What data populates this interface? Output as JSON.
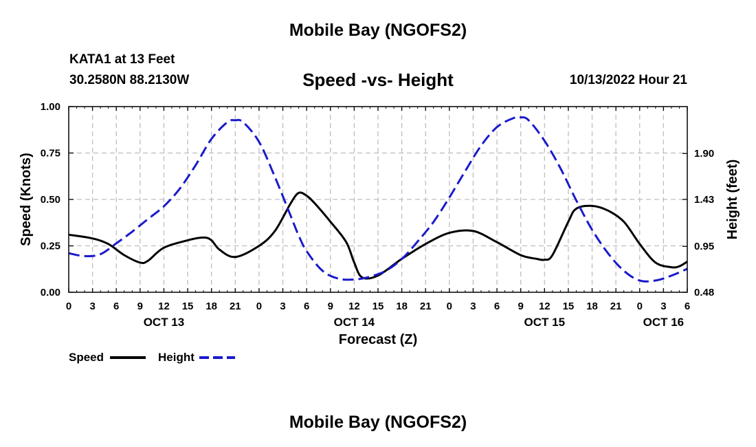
{
  "header": {
    "title": "Mobile Bay (NGOFS2)",
    "station": "KATA1 at 13 Feet",
    "coordinates": "30.2580N  88.2130W",
    "datetime": "10/13/2022 Hour 21"
  },
  "footer": {
    "title": "Mobile Bay (NGOFS2)"
  },
  "chart_data": {
    "type": "line",
    "title": "Speed -vs- Height",
    "xlabel": "Forecast (Z)",
    "ylabel": "Speed (Knots)",
    "y2label": "Height (feet)",
    "x_unit": "hours since 2022-10-13 00Z",
    "xlim": [
      0,
      78
    ],
    "ylim": [
      0,
      1
    ],
    "y2lim": [
      0.48,
      2.38
    ],
    "grid": true,
    "x_ticks": [
      {
        "x": 0,
        "label": "0"
      },
      {
        "x": 3,
        "label": "3"
      },
      {
        "x": 6,
        "label": "6"
      },
      {
        "x": 9,
        "label": "9"
      },
      {
        "x": 12,
        "label": "12"
      },
      {
        "x": 15,
        "label": "15"
      },
      {
        "x": 18,
        "label": "18"
      },
      {
        "x": 21,
        "label": "21"
      },
      {
        "x": 24,
        "label": "0"
      },
      {
        "x": 27,
        "label": "3"
      },
      {
        "x": 30,
        "label": "6"
      },
      {
        "x": 33,
        "label": "9"
      },
      {
        "x": 36,
        "label": "12"
      },
      {
        "x": 39,
        "label": "15"
      },
      {
        "x": 42,
        "label": "18"
      },
      {
        "x": 45,
        "label": "21"
      },
      {
        "x": 48,
        "label": "0"
      },
      {
        "x": 51,
        "label": "3"
      },
      {
        "x": 54,
        "label": "6"
      },
      {
        "x": 57,
        "label": "9"
      },
      {
        "x": 60,
        "label": "12"
      },
      {
        "x": 63,
        "label": "15"
      },
      {
        "x": 66,
        "label": "18"
      },
      {
        "x": 69,
        "label": "21"
      },
      {
        "x": 72,
        "label": "0"
      },
      {
        "x": 75,
        "label": "3"
      },
      {
        "x": 78,
        "label": "6"
      }
    ],
    "date_labels": [
      {
        "x": 12,
        "label": "OCT 13"
      },
      {
        "x": 36,
        "label": "OCT 14"
      },
      {
        "x": 60,
        "label": "OCT 15"
      },
      {
        "x": 75,
        "label": "OCT 16"
      }
    ],
    "y_ticks": [
      {
        "v": 0,
        "label": "0.00"
      },
      {
        "v": 0.25,
        "label": "0.25"
      },
      {
        "v": 0.5,
        "label": "0.50"
      },
      {
        "v": 0.75,
        "label": "0.75"
      },
      {
        "v": 1,
        "label": "1.00"
      }
    ],
    "y2_ticks": [
      {
        "v": 0.48,
        "label": "0.48"
      },
      {
        "v": 0.95,
        "label": "0.95"
      },
      {
        "v": 1.43,
        "label": "1.43"
      },
      {
        "v": 1.9,
        "label": "1.90"
      }
    ],
    "legend": [
      "Speed",
      "Height"
    ],
    "series": [
      {
        "name": "Speed",
        "axis": "left",
        "color": "#000000",
        "dash": "solid",
        "x": [
          0,
          3,
          5,
          7,
          9,
          10,
          12,
          15,
          17,
          18,
          19,
          21,
          24,
          26,
          28,
          29,
          30,
          31,
          33,
          35,
          36,
          37,
          39,
          42,
          45,
          48,
          51,
          54,
          57,
          59,
          60,
          61,
          63,
          64,
          66,
          68,
          70,
          72,
          74,
          76,
          77,
          78
        ],
        "values": [
          0.31,
          0.29,
          0.26,
          0.2,
          0.16,
          0.17,
          0.24,
          0.28,
          0.295,
          0.28,
          0.23,
          0.19,
          0.25,
          0.33,
          0.48,
          0.535,
          0.52,
          0.48,
          0.38,
          0.27,
          0.16,
          0.08,
          0.09,
          0.18,
          0.26,
          0.32,
          0.33,
          0.27,
          0.2,
          0.18,
          0.175,
          0.2,
          0.38,
          0.45,
          0.465,
          0.44,
          0.38,
          0.26,
          0.16,
          0.135,
          0.14,
          0.165
        ]
      },
      {
        "name": "Height",
        "axis": "right",
        "color": "#1a1acc",
        "dash": "dashed",
        "x": [
          0,
          2,
          4,
          6,
          8,
          10,
          12,
          14,
          16,
          18,
          20,
          21,
          22,
          24,
          26,
          28,
          29,
          30,
          32,
          34,
          36,
          38,
          40,
          42,
          44,
          46,
          48,
          50,
          52,
          54,
          56,
          57,
          58,
          60,
          62,
          64,
          66,
          68,
          70,
          72,
          74,
          76,
          78
        ],
        "values": [
          0.88,
          0.85,
          0.87,
          0.98,
          1.1,
          1.23,
          1.36,
          1.54,
          1.78,
          2.05,
          2.22,
          2.24,
          2.22,
          2.02,
          1.66,
          1.26,
          1.06,
          0.9,
          0.7,
          0.62,
          0.61,
          0.64,
          0.7,
          0.82,
          1.0,
          1.2,
          1.45,
          1.72,
          1.98,
          2.17,
          2.26,
          2.27,
          2.24,
          2.03,
          1.75,
          1.42,
          1.12,
          0.88,
          0.7,
          0.6,
          0.6,
          0.65,
          0.72
        ]
      }
    ]
  }
}
